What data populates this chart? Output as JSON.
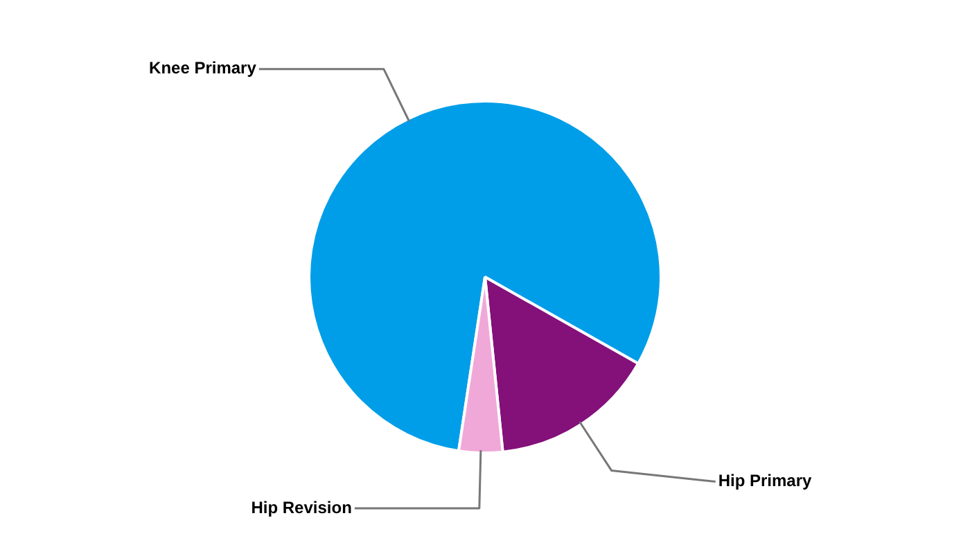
{
  "chart_data": {
    "type": "pie",
    "categories": [
      "Knee Primary",
      "Hip Primary",
      "Hip Revision"
    ],
    "values": [
      80.8,
      15.2,
      4.0
    ],
    "colors": [
      "#009ee8",
      "#84107a",
      "#f0a8d8"
    ],
    "legend": false
  }
}
